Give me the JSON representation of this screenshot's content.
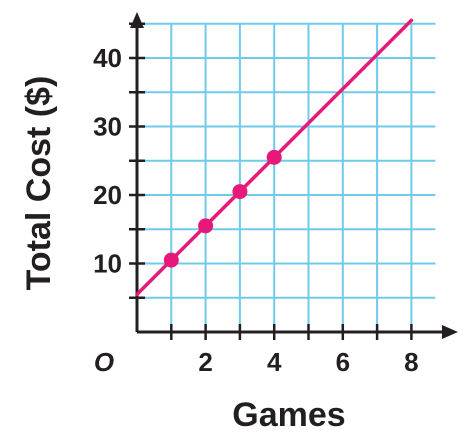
{
  "chart_data": {
    "type": "line",
    "xlabel": "Games",
    "ylabel": "Total Cost ($)",
    "origin_label": "O",
    "x_tick_labels": [
      "2",
      "4",
      "6",
      "8"
    ],
    "y_tick_labels": [
      "10",
      "20",
      "30",
      "40"
    ],
    "x_ticks": [
      2,
      4,
      6,
      8
    ],
    "y_ticks": [
      10,
      20,
      30,
      40
    ],
    "xlim": [
      0,
      8.7
    ],
    "ylim": [
      0,
      45
    ],
    "grid": true,
    "grid_step_x": 1,
    "grid_step_y": 5,
    "series": [
      {
        "kind": "line",
        "x": [
          0,
          8
        ],
        "y": [
          5.5,
          45.5
        ],
        "color": "#e6197a"
      },
      {
        "kind": "points",
        "x": [
          1,
          2,
          3,
          4
        ],
        "y": [
          10.5,
          15.5,
          20.5,
          25.5
        ],
        "color": "#e6197a"
      }
    ],
    "colors": {
      "grid": "#6fcbe9",
      "axis": "#231f20",
      "series": "#e6197a"
    }
  }
}
